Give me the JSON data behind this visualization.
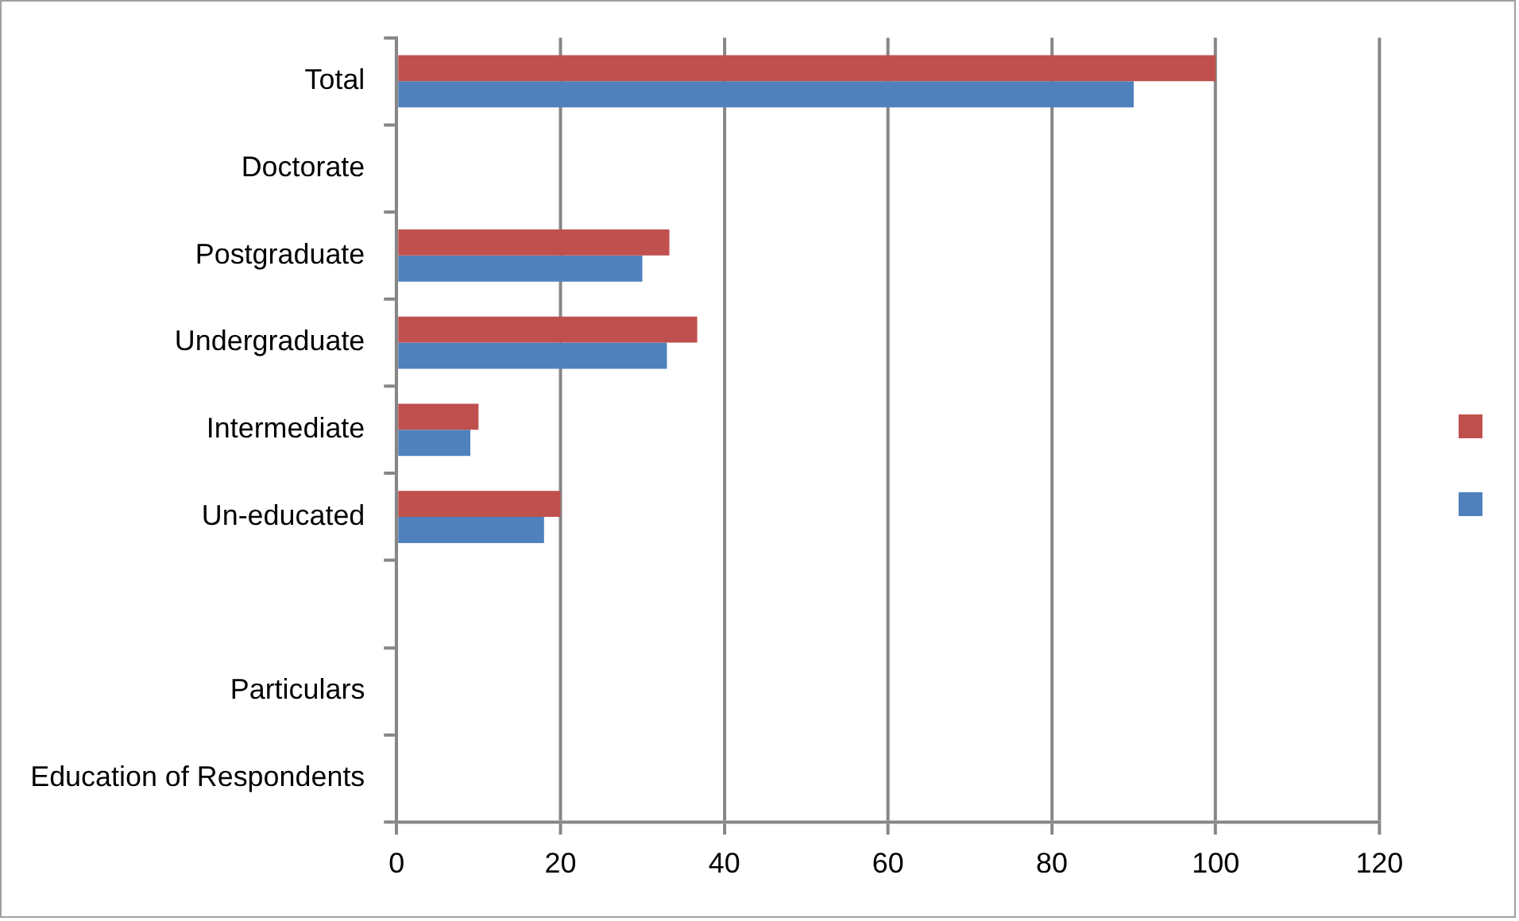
{
  "chart_data": {
    "type": "bar",
    "orientation": "horizontal",
    "categories": [
      "Total",
      "Doctorate",
      "Postgraduate",
      "Undergraduate",
      "Intermediate",
      "Un-educated",
      null,
      "Particulars",
      "Education of Respondents"
    ],
    "series": [
      {
        "color": "#c0504d",
        "values": [
          100,
          null,
          33.3,
          36.7,
          10,
          20,
          null,
          null,
          null
        ]
      },
      {
        "color": "#4f81bd",
        "values": [
          90,
          null,
          30,
          33,
          9,
          18,
          null,
          null,
          null
        ]
      }
    ],
    "xlim": [
      0,
      120
    ],
    "xticks": [
      0,
      20,
      40,
      60,
      80,
      100,
      120
    ],
    "grid": "x"
  }
}
